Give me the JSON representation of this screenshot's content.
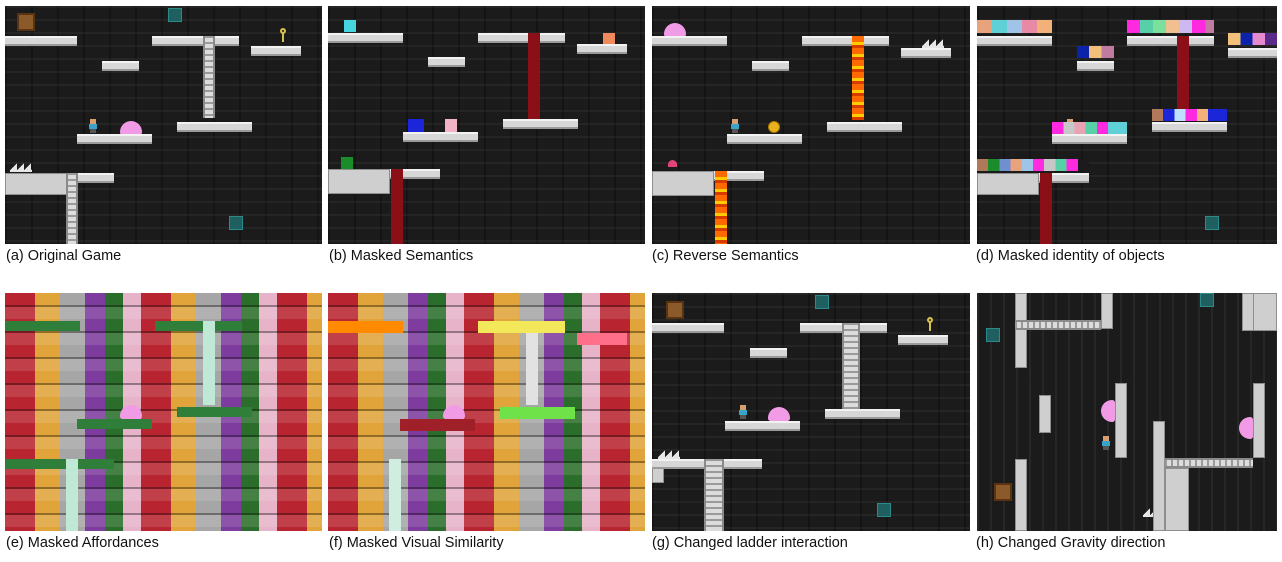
{
  "captions": [
    "(a) Original Game",
    "(b) Masked Semantics",
    "(c) Reverse Semantics",
    "(d) Masked identity of objects",
    "(e) Masked Affordances",
    "(f) Masked Visual Similarity",
    "(g) Changed ladder interaction",
    "(h) Changed Gravity direction"
  ],
  "colors": {
    "background": "#1b1b1b",
    "platform": "#d7d7d7",
    "hazard_pillar": "#8b0f17",
    "fire": "#ff6a00",
    "slime": "#f19be7",
    "key": "#d9c24a"
  },
  "icons": [
    "player-icon",
    "slime-enemy-icon",
    "key-icon",
    "crate-icon",
    "door-icon",
    "spikes-icon",
    "ladder-icon",
    "fire-icon",
    "coin-icon",
    "mushroom-icon"
  ]
}
